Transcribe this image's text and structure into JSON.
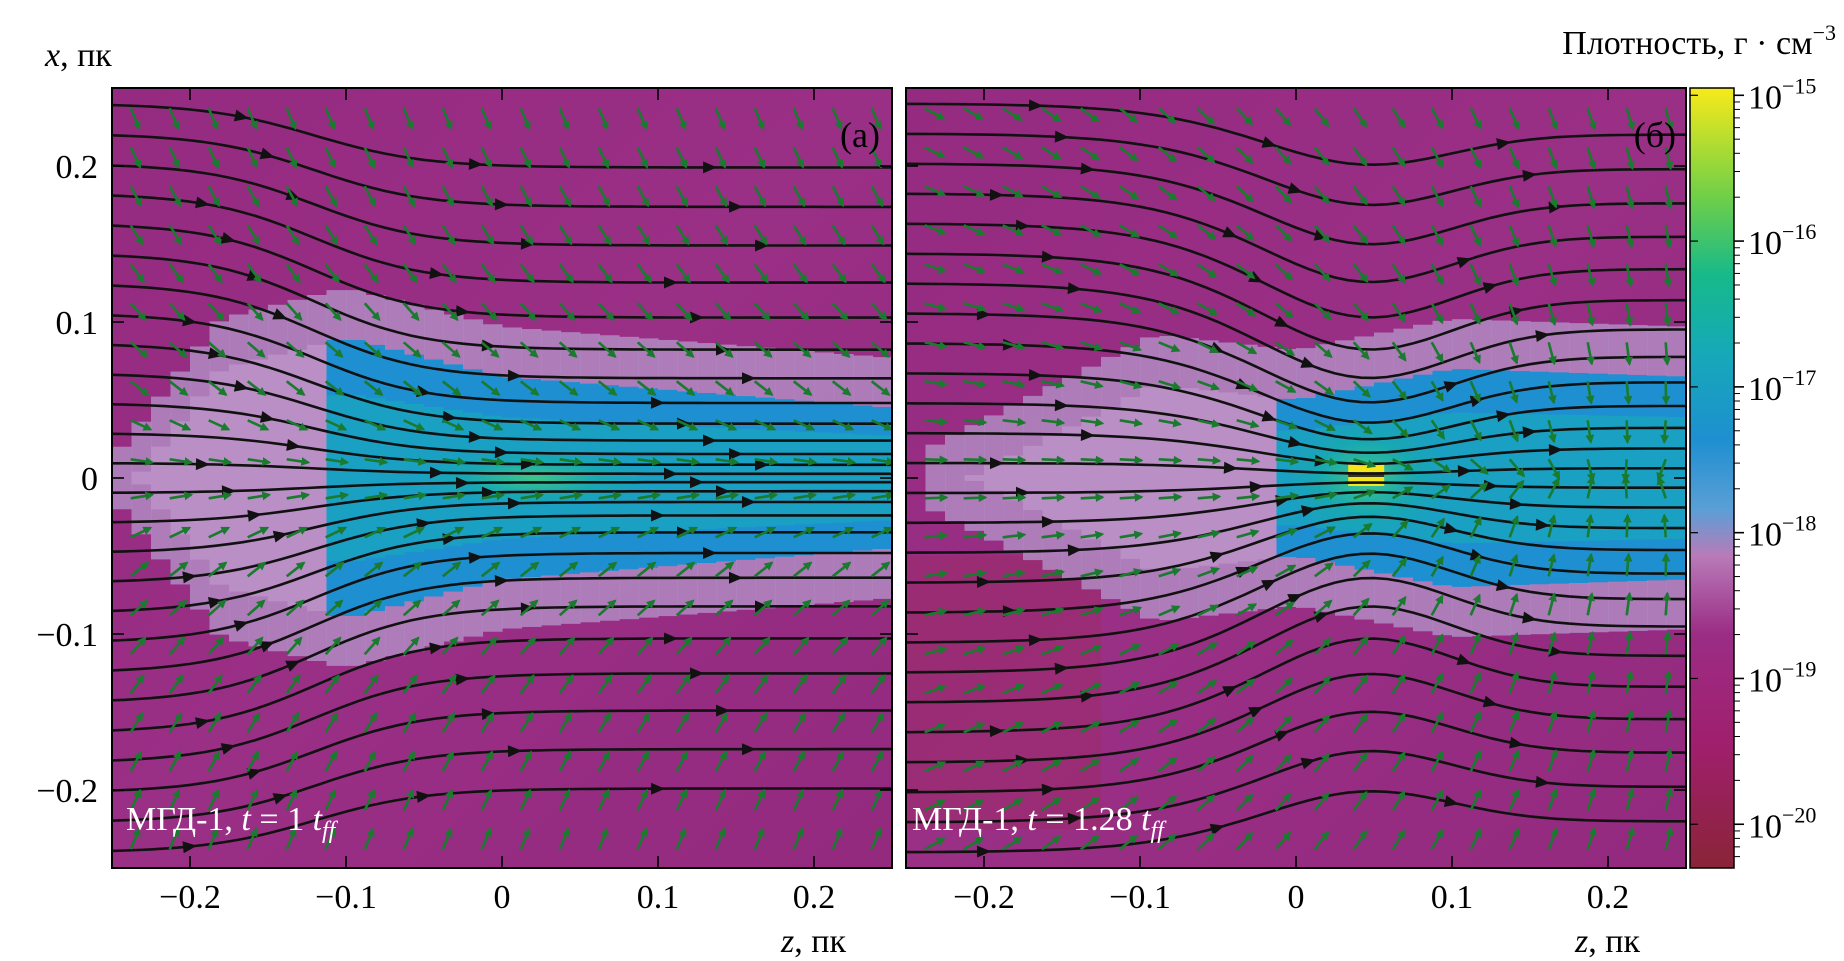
{
  "chart_data": [
    {
      "type": "heatmap",
      "panel_label": "(a)",
      "run_label": {
        "model": "МГД-1",
        "time": "1",
        "unit": "ff"
      },
      "xlabel": "z, пк",
      "ylabel": "x, пк",
      "xlim": [
        -0.25,
        0.25
      ],
      "ylim": [
        -0.25,
        0.25
      ],
      "xticks": [
        -0.2,
        -0.1,
        0,
        0.1,
        0.2
      ],
      "xtick_labels": [
        "−0.2",
        "−0.1",
        "0",
        "0.1",
        "0.2"
      ],
      "yticks": [
        -0.2,
        -0.1,
        0,
        0.1,
        0.2
      ],
      "ytick_labels": [
        "−0.2",
        "−0.1",
        "0",
        "0.1",
        "0.2"
      ],
      "density_log10": {
        "background": -19.2,
        "filament_half_width": [
          {
            "z": -0.25,
            "halfwidth": 0.0
          },
          {
            "z": -0.18,
            "halfwidth": 0.09
          },
          {
            "z": -0.1,
            "halfwidth": 0.11
          },
          {
            "z": 0.0,
            "halfwidth": 0.085
          },
          {
            "z": 0.25,
            "halfwidth": 0.065
          }
        ],
        "peak": -17.3,
        "peak_location": {
          "z": 0.02,
          "x": 0.0
        }
      },
      "field_lines": "black streamlines converging toward the filament axis at x = 0",
      "velocity_vectors": "green arrows pointing toward the filament"
    },
    {
      "type": "heatmap",
      "panel_label": "(б)",
      "run_label": {
        "model": "МГД-1",
        "time": "1.28",
        "unit": "ff"
      },
      "xlabel": "z, пк",
      "ylabel": "",
      "xlim": [
        -0.25,
        0.25
      ],
      "ylim": [
        -0.25,
        0.25
      ],
      "xticks": [
        -0.2,
        -0.1,
        0,
        0.1,
        0.2
      ],
      "xtick_labels": [
        "−0.2",
        "−0.1",
        "0",
        "0.1",
        "0.2"
      ],
      "density_log10": {
        "background": -19.2,
        "core_location": {
          "z": 0.045,
          "x": 0.0
        },
        "core_peak": -15.1,
        "filament_half_width": [
          {
            "z": -0.25,
            "halfwidth": 0.0
          },
          {
            "z": -0.09,
            "halfwidth": 0.08
          },
          {
            "z": 0.0,
            "halfwidth": 0.07
          },
          {
            "z": 0.1,
            "halfwidth": 0.09
          },
          {
            "z": 0.25,
            "halfwidth": 0.085
          }
        ]
      },
      "field_lines": "black streamlines pinched toward the dense core near z = 0.045",
      "velocity_vectors": "green arrows converging on the core"
    }
  ],
  "colorbar": {
    "title": "Плотность, г · см",
    "title_exp": "−3",
    "scale": "log",
    "range_log10": [
      -20.3,
      -14.95
    ],
    "ticks": [
      -15,
      -16,
      -17,
      -18,
      -19,
      -20
    ],
    "tick_labels": [
      {
        "base": "10",
        "exp": "−15"
      },
      {
        "base": "10",
        "exp": "−16"
      },
      {
        "base": "10",
        "exp": "−17"
      },
      {
        "base": "10",
        "exp": "−18"
      },
      {
        "base": "10",
        "exp": "−19"
      },
      {
        "base": "10",
        "exp": "−20"
      }
    ],
    "colors": [
      "#8a2438",
      "#a01f6e",
      "#9b3a8c",
      "#5a9fd6",
      "#1e8fd0",
      "#16b3a0",
      "#28c06a",
      "#b8d83a",
      "#f7ea1a"
    ]
  },
  "colors": {
    "background_density": "#962d82",
    "filament": "#1e90d2",
    "halo": "#b089c2",
    "field_line": "#111111",
    "velocity_arrow": "#1a7a2e",
    "core": "#f5e51c"
  }
}
